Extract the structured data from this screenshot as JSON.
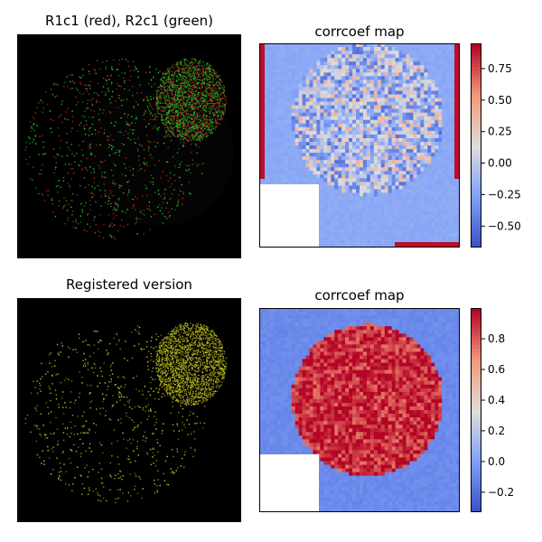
{
  "panels": [
    {
      "title": "R1c1 (red), R2c1 (green)"
    },
    {
      "title": "corrcoef map"
    },
    {
      "title": "Registered version"
    },
    {
      "title": "corrcoef map"
    }
  ],
  "chart_data": [
    {
      "type": "image",
      "title": "R1c1 (red), R2c1 (green)",
      "description_colors": {
        "background": "#000000",
        "channel_a": "#ff0000",
        "channel_b": "#00ff00"
      }
    },
    {
      "type": "heatmap",
      "title": "corrcoef map",
      "colormap": "coolwarm",
      "colorbar": {
        "vmin": -0.67,
        "vmax": 0.95,
        "ticks": [
          0.75,
          0.5,
          0.25,
          0.0,
          -0.25,
          -0.5
        ],
        "tick_labels": [
          "0.75",
          "0.50",
          "0.25",
          "0.00",
          "−0.25",
          "−0.50"
        ]
      },
      "background_value": -0.2,
      "disk_mean_value": -0.05
    },
    {
      "type": "image",
      "title": "Registered version",
      "description_colors": {
        "background": "#000000",
        "overlay": "#c8c800"
      }
    },
    {
      "type": "heatmap",
      "title": "corrcoef map",
      "colormap": "coolwarm",
      "colorbar": {
        "vmin": -0.33,
        "vmax": 1.0,
        "ticks": [
          0.8,
          0.6,
          0.4,
          0.2,
          0.0,
          -0.2
        ],
        "tick_labels": [
          "0.8",
          "0.6",
          "0.4",
          "0.2",
          "0.0",
          "−0.2"
        ]
      },
      "background_value": -0.08,
      "disk_mean_value": 0.92
    }
  ]
}
